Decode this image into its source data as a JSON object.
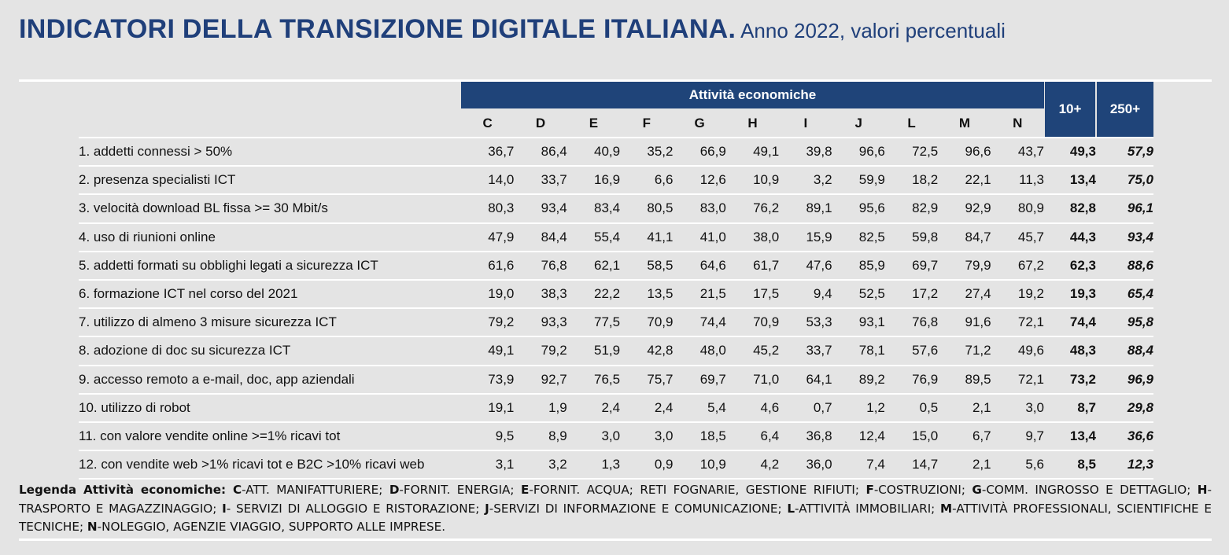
{
  "header": {
    "title": "INDICATORI DELLA TRANSIZIONE DIGITALE ITALIANA",
    "title_dot": ".",
    "subtitle": " Anno 2022, valori percentuali"
  },
  "table": {
    "group_header": "Attività economiche",
    "col_10": "10+",
    "col_250": "250+",
    "codes": [
      "C",
      "D",
      "E",
      "F",
      "G",
      "H",
      "I",
      "J",
      "L",
      "M",
      "N"
    ],
    "rows": [
      {
        "label": "1. addetti connessi > 50%",
        "values": [
          "36,7",
          "86,4",
          "40,9",
          "35,2",
          "66,9",
          "49,1",
          "39,8",
          "96,6",
          "72,5",
          "96,6",
          "43,7"
        ],
        "v10": "49,3",
        "v250": "57,9"
      },
      {
        "label": "2. presenza specialisti ICT",
        "values": [
          "14,0",
          "33,7",
          "16,9",
          "6,6",
          "12,6",
          "10,9",
          "3,2",
          "59,9",
          "18,2",
          "22,1",
          "11,3"
        ],
        "v10": "13,4",
        "v250": "75,0"
      },
      {
        "label": "3. velocità download BL fissa >= 30 Mbit/s",
        "values": [
          "80,3",
          "93,4",
          "83,4",
          "80,5",
          "83,0",
          "76,2",
          "89,1",
          "95,6",
          "82,9",
          "92,9",
          "80,9"
        ],
        "v10": "82,8",
        "v250": "96,1"
      },
      {
        "label": "4. uso di riunioni online",
        "values": [
          "47,9",
          "84,4",
          "55,4",
          "41,1",
          "41,0",
          "38,0",
          "15,9",
          "82,5",
          "59,8",
          "84,7",
          "45,7"
        ],
        "v10": "44,3",
        "v250": "93,4"
      },
      {
        "label": "5. addetti formati su obblighi legati a sicurezza ICT",
        "values": [
          "61,6",
          "76,8",
          "62,1",
          "58,5",
          "64,6",
          "61,7",
          "47,6",
          "85,9",
          "69,7",
          "79,9",
          "67,2"
        ],
        "v10": "62,3",
        "v250": "88,6"
      },
      {
        "label": "6. formazione ICT nel corso del 2021",
        "values": [
          "19,0",
          "38,3",
          "22,2",
          "13,5",
          "21,5",
          "17,5",
          "9,4",
          "52,5",
          "17,2",
          "27,4",
          "19,2"
        ],
        "v10": "19,3",
        "v250": "65,4"
      },
      {
        "label": "7. utilizzo di almeno 3 misure sicurezza ICT",
        "values": [
          "79,2",
          "93,3",
          "77,5",
          "70,9",
          "74,4",
          "70,9",
          "53,3",
          "93,1",
          "76,8",
          "91,6",
          "72,1"
        ],
        "v10": "74,4",
        "v250": "95,8"
      },
      {
        "label": "8. adozione di doc su sicurezza ICT",
        "values": [
          "49,1",
          "79,2",
          "51,9",
          "42,8",
          "48,0",
          "45,2",
          "33,7",
          "78,1",
          "57,6",
          "71,2",
          "49,6"
        ],
        "v10": "48,3",
        "v250": "88,4"
      },
      {
        "label": "9. accesso remoto a e-mail, doc, app aziendali",
        "values": [
          "73,9",
          "92,7",
          "76,5",
          "75,7",
          "69,7",
          "71,0",
          "64,1",
          "89,2",
          "76,9",
          "89,5",
          "72,1"
        ],
        "v10": "73,2",
        "v250": "96,9"
      },
      {
        "label": "10. utilizzo di robot",
        "values": [
          "19,1",
          "1,9",
          "2,4",
          "2,4",
          "5,4",
          "4,6",
          "0,7",
          "1,2",
          "0,5",
          "2,1",
          "3,0"
        ],
        "v10": "8,7",
        "v250": "29,8"
      },
      {
        "label": "11. con valore vendite online >=1% ricavi tot",
        "values": [
          "9,5",
          "8,9",
          "3,0",
          "3,0",
          "18,5",
          "6,4",
          "36,8",
          "12,4",
          "15,0",
          "6,7",
          "9,7"
        ],
        "v10": "13,4",
        "v250": "36,6"
      },
      {
        "label": "12. con vendite web >1% ricavi tot e B2C >10% ricavi web",
        "values": [
          "3,1",
          "3,2",
          "1,3",
          "0,9",
          "10,9",
          "4,2",
          "36,0",
          "7,4",
          "14,7",
          "2,1",
          "5,6"
        ],
        "v10": "8,5",
        "v250": "12,3"
      }
    ]
  },
  "legend": {
    "title": "Legenda Attività economiche: ",
    "items": [
      {
        "code": "C",
        "text": "-ATT. MANIFATTURIERE; "
      },
      {
        "code": "D",
        "text": "-FORNIT. ENERGIA; "
      },
      {
        "code": "E",
        "text": "-FORNIT. ACQUA; RETI FOGNARIE, GESTIONE RIFIUTI; "
      },
      {
        "code": "F",
        "text": "-COSTRUZIONI; "
      },
      {
        "code": "G",
        "text": "-COMM. INGROSSO E DETTAGLIO; "
      },
      {
        "code": "H",
        "text": "-TRASPORTO E MAGAZZINAGGIO; "
      },
      {
        "code": "I",
        "text": "- SERVIZI DI ALLOGGIO E RISTORAZIONE; "
      },
      {
        "code": "J",
        "text": "-SERVIZI DI INFORMAZIONE E COMUNICAZIONE; "
      },
      {
        "code": "L",
        "text": "-ATTIVITÀ IMMOBILIARI; "
      },
      {
        "code": "M",
        "text": "-ATTIVITÀ PROFESSIONALI, SCIENTIFICHE E TECNICHE; "
      },
      {
        "code": "N",
        "text": "-NOLEGGIO, AGENZIE VIAGGIO, SUPPORTO ALLE IMPRESE."
      }
    ]
  }
}
